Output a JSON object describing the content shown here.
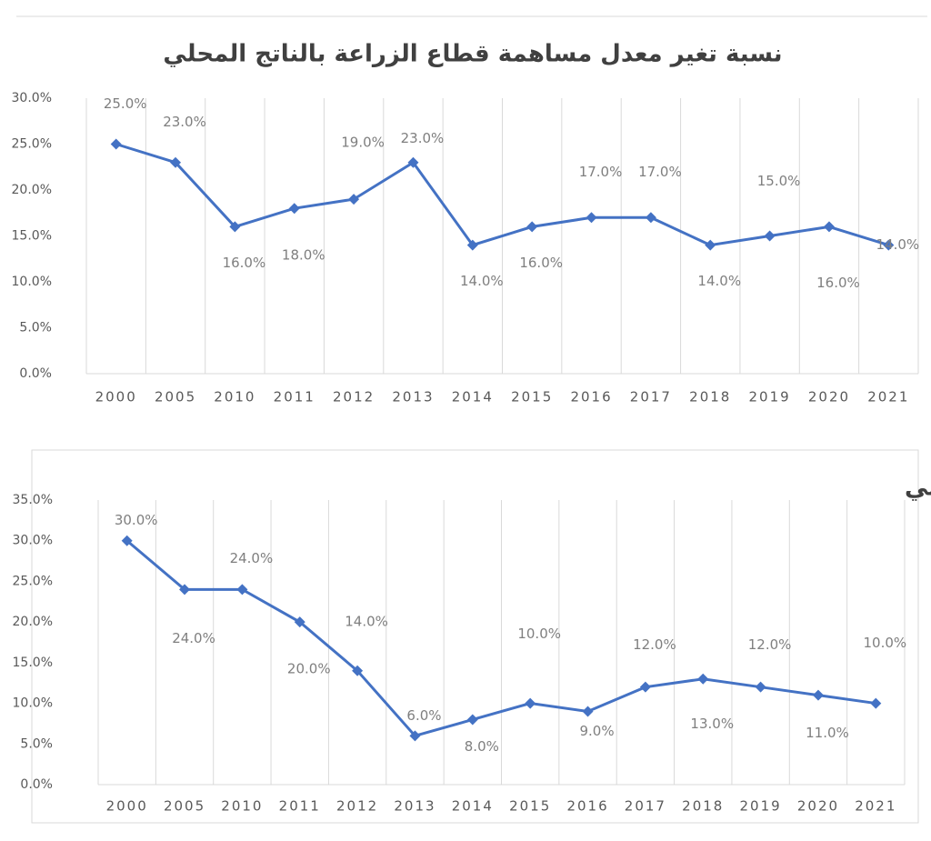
{
  "chart_data": [
    {
      "type": "line",
      "title": "نسبة تغير معدل مساهمة قطاع الزراعة بالناتج المحلي",
      "categories": [
        "2000",
        "2005",
        "2010",
        "2011",
        "2012",
        "2013",
        "2014",
        "2015",
        "2016",
        "2017",
        "2018",
        "2019",
        "2020",
        "2021"
      ],
      "values": [
        25,
        23,
        16,
        18,
        19,
        23,
        14,
        16,
        17,
        17,
        14,
        15,
        16,
        14
      ],
      "value_labels": [
        "25.0%",
        "23.0%",
        "16.0%",
        "18.0%",
        "19.0%",
        "23.0%",
        "14.0%",
        "16.0%",
        "17.0%",
        "17.0%",
        "14.0%",
        "15.0%",
        "16.0%",
        "14.0%"
      ],
      "color": "#4472c4",
      "ylim": [
        0,
        30
      ],
      "yticks": [
        {
          "value": 0,
          "label": "0.0%"
        },
        {
          "value": 5,
          "label": "5.0%"
        },
        {
          "value": 10,
          "label": "10.0%"
        },
        {
          "value": 15,
          "label": "15.0%"
        },
        {
          "value": 20,
          "label": "20.0%"
        },
        {
          "value": 25,
          "label": "25.0%"
        },
        {
          "value": 30,
          "label": "30.0%"
        }
      ],
      "grid": true
    },
    {
      "type": "line",
      "title": "نسبة تغير معدل مساهمة قطاع الصناعة بالناتج المحلي",
      "categories": [
        "2000",
        "2005",
        "2010",
        "2011",
        "2012",
        "2013",
        "2014",
        "2015",
        "2016",
        "2017",
        "2018",
        "2019",
        "2020",
        "2021"
      ],
      "values": [
        30,
        24,
        24,
        20,
        14,
        6,
        8,
        10,
        9,
        12,
        13,
        12,
        11,
        10
      ],
      "value_labels": [
        "30.0%",
        "24.0%",
        "24.0%",
        "20.0%",
        "14.0%",
        "6.0%",
        "8.0%",
        "10.0%",
        "9.0%",
        "12.0%",
        "13.0%",
        "12.0%",
        "11.0%",
        "10.0%"
      ],
      "color": "#4472c4",
      "ylim": [
        0,
        35
      ],
      "yticks": [
        {
          "value": 0,
          "label": "0.0%"
        },
        {
          "value": 5,
          "label": "5.0%"
        },
        {
          "value": 10,
          "label": "10.0%"
        },
        {
          "value": 15,
          "label": "15.0%"
        },
        {
          "value": 20,
          "label": "20.0%"
        },
        {
          "value": 25,
          "label": "25.0%"
        },
        {
          "value": 30,
          "label": "30.0%"
        },
        {
          "value": 35,
          "label": "35.0%"
        }
      ],
      "grid": true
    }
  ]
}
